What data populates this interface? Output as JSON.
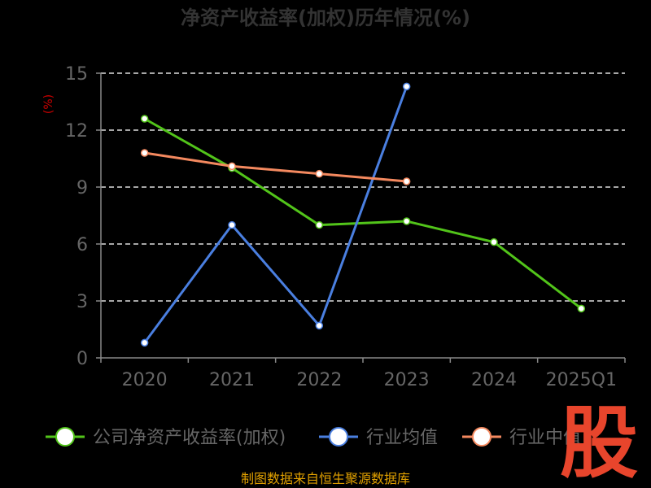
{
  "title": "净资产收益率(加权)历年情况(%)",
  "source": "制图数据来自恒生聚源数据库",
  "watermark": "股",
  "colors": {
    "background": "#000000",
    "axis": "#888888",
    "grid": "#dddddd",
    "tick_text": "#666666",
    "title": "#333333",
    "unit": "#cc0000",
    "source": "#e0a000",
    "watermark": "#e8452c"
  },
  "chart_data": {
    "type": "line",
    "title": "净资产收益率(加权)历年情况(%)",
    "ylabel": "(%)",
    "xlabel": "",
    "categories": [
      "2020",
      "2021",
      "2022",
      "2023",
      "2024",
      "2025Q1"
    ],
    "ylim": [
      0,
      15
    ],
    "yticks": [
      0,
      3,
      6,
      9,
      12,
      15
    ],
    "grid": true,
    "legend_position": "bottom",
    "series": [
      {
        "name": "公司净资产收益率(加权)",
        "color": "#52c41a",
        "values": [
          12.6,
          10.0,
          7.0,
          7.2,
          6.1,
          2.6
        ]
      },
      {
        "name": "行业均值",
        "color": "#4a7fe0",
        "values": [
          0.8,
          7.0,
          1.7,
          14.3,
          null,
          null
        ]
      },
      {
        "name": "行业中值",
        "color": "#f4895f",
        "values": [
          10.8,
          10.1,
          9.7,
          9.3,
          null,
          null
        ]
      }
    ]
  }
}
